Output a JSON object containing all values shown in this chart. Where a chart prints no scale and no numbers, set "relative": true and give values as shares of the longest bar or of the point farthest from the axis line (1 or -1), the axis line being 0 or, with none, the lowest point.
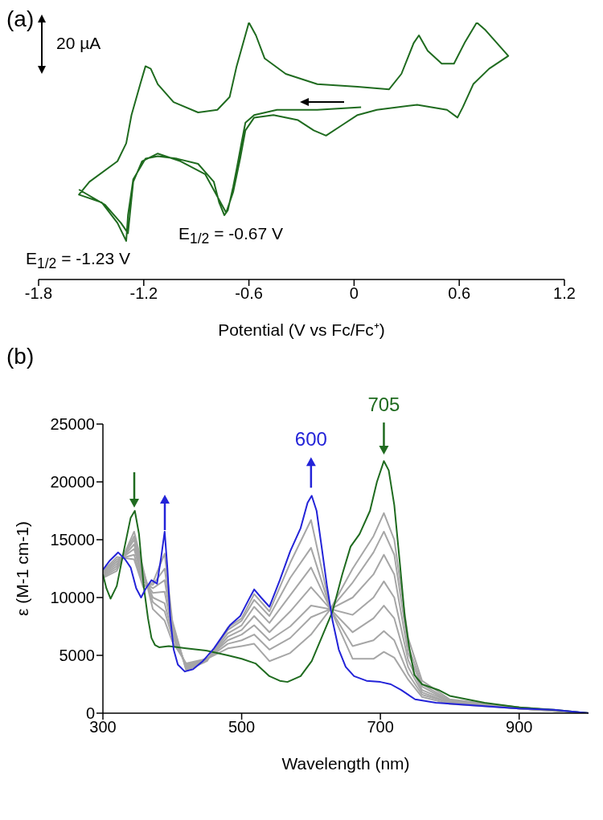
{
  "chart_data": [
    {
      "type": "line",
      "title": "(a)",
      "xlabel": "Potential (V vs Fc/Fc⁺)",
      "relative": true,
      "tick_labels": "x",
      "xlim": [
        -1.8,
        1.2
      ],
      "xticks": [
        -1.8,
        -1.2,
        -0.6,
        0,
        0.6,
        1.2
      ],
      "annotations": [
        "20 µA",
        "E$_{1/2}$ = -0.67 V",
        "E$_{1/2}$ = -1.23 V"
      ],
      "series": [
        {
          "color": "#1f6b1f",
          "x": [
            0.04,
            -0.21,
            -0.44,
            -0.57,
            -0.62,
            -0.64,
            -0.67,
            -0.69,
            -0.72,
            -0.74,
            -0.77,
            -0.8,
            -0.89,
            -1.01,
            -1.12,
            -1.19,
            -1.26,
            -1.29,
            -1.3,
            -1.35,
            -1.44,
            -1.57,
            -1.51,
            -1.35,
            -1.3,
            -1.27,
            -1.22,
            -1.19,
            -1.16,
            -1.12,
            -1.03,
            -0.89,
            -0.78,
            -0.71,
            -0.67,
            -0.6,
            -0.56,
            -0.51,
            -0.39,
            -0.21,
            0.02,
            0.2,
            0.27,
            0.34,
            0.37,
            0.42,
            0.5,
            0.57,
            0.63,
            0.7,
            0.75,
            0.88,
            0.77,
            0.68,
            0.62,
            0.59,
            0.53,
            0.36,
            0.13,
            0.02,
            -0.07,
            -0.16,
            -0.23,
            -0.32,
            -0.46,
            -0.57,
            -0.62,
            -0.65,
            -0.69,
            -0.73,
            -0.77,
            -0.85,
            -0.99,
            -1.12,
            -1.21,
            -1.26,
            -1.29,
            -1.33,
            -1.42,
            -1.57
          ],
          "values": [
            0.67,
            0.66,
            0.66,
            0.64,
            0.61,
            0.54,
            0.43,
            0.36,
            0.27,
            0.25,
            0.3,
            0.38,
            0.45,
            0.47,
            0.48,
            0.47,
            0.39,
            0.25,
            0.15,
            0.22,
            0.3,
            0.33,
            0.38,
            0.46,
            0.53,
            0.64,
            0.76,
            0.83,
            0.82,
            0.76,
            0.69,
            0.65,
            0.66,
            0.71,
            0.83,
            1,
            0.95,
            0.86,
            0.8,
            0.76,
            0.75,
            0.74,
            0.8,
            0.92,
            0.95,
            0.89,
            0.84,
            0.84,
            0.92,
            1,
            0.97,
            0.87,
            0.82,
            0.76,
            0.67,
            0.63,
            0.66,
            0.68,
            0.66,
            0.64,
            0.6,
            0.56,
            0.58,
            0.62,
            0.64,
            0.63,
            0.58,
            0.47,
            0.34,
            0.26,
            0.31,
            0.41,
            0.46,
            0.49,
            0.46,
            0.38,
            0.18,
            0.22,
            0.29,
            0.35
          ]
        }
      ]
    },
    {
      "type": "line",
      "title": "(b)",
      "xlabel": "Wavelength (nm)",
      "ylabel": "ε (M-1 cm-1)",
      "xlim": [
        300,
        1000
      ],
      "xticks": [
        300,
        500,
        700,
        900
      ],
      "ylim": [
        0,
        25000
      ],
      "yticks": [
        0,
        5000,
        10000,
        15000,
        20000,
        25000
      ],
      "annotations": [
        {
          "text": "600",
          "x": 600,
          "y": 18800
        },
        {
          "text": "705",
          "x": 705,
          "y": 21800
        }
      ],
      "series": [
        {
          "color": "#a6a6a6",
          "x": [
            300,
            320,
            345,
            358,
            372,
            389,
            400,
            420,
            450,
            480,
            500,
            518,
            540,
            570,
            600,
            628,
            660,
            690,
            705,
            720,
            740,
            760,
            800,
            900,
            1000
          ],
          "values": [
            11700,
            12300,
            15700,
            12500,
            9000,
            8000,
            6200,
            4300,
            4700,
            5600,
            5800,
            6000,
            4500,
            5200,
            6800,
            9000,
            12500,
            15300,
            17300,
            15000,
            6500,
            2800,
            1200,
            500,
            0
          ]
        },
        {
          "color": "#a6a6a6",
          "x": [
            300,
            320,
            345,
            358,
            372,
            389,
            400,
            420,
            450,
            480,
            500,
            518,
            540,
            570,
            600,
            628,
            660,
            690,
            705,
            720,
            740,
            760,
            800,
            900,
            1000
          ],
          "values": [
            11800,
            12500,
            15300,
            12300,
            9600,
            8800,
            6600,
            4200,
            4700,
            6000,
            6300,
            6800,
            5500,
            6500,
            8300,
            9000,
            11300,
            13900,
            15700,
            13700,
            5800,
            2500,
            1100,
            500,
            0
          ]
        },
        {
          "color": "#a6a6a6",
          "x": [
            300,
            320,
            345,
            358,
            372,
            389,
            400,
            420,
            450,
            480,
            500,
            518,
            540,
            570,
            600,
            628,
            660,
            690,
            705,
            720,
            740,
            760,
            800,
            900,
            1000
          ],
          "values": [
            11900,
            12700,
            15000,
            12000,
            10000,
            9500,
            6900,
            4100,
            4700,
            6300,
            6800,
            7600,
            6300,
            7500,
            9300,
            9000,
            10000,
            12000,
            13700,
            12000,
            5200,
            2300,
            1000,
            500,
            0
          ]
        },
        {
          "color": "#a6a6a6",
          "x": [
            300,
            320,
            345,
            358,
            372,
            389,
            400,
            420,
            450,
            480,
            500,
            518,
            540,
            570,
            600,
            628,
            660,
            690,
            705,
            720,
            740,
            760,
            800,
            900,
            1000
          ],
          "values": [
            12000,
            12900,
            14600,
            11700,
            10400,
            10500,
            7200,
            4000,
            4600,
            6600,
            7200,
            8400,
            7000,
            8800,
            10900,
            9000,
            8500,
            10000,
            11400,
            10000,
            4600,
            2000,
            1000,
            400,
            0
          ]
        },
        {
          "color": "#a6a6a6",
          "x": [
            300,
            320,
            345,
            358,
            372,
            389,
            400,
            420,
            450,
            480,
            500,
            518,
            540,
            570,
            600,
            628,
            660,
            690,
            705,
            720,
            740,
            760,
            800,
            900,
            1000
          ],
          "values": [
            12100,
            13100,
            14200,
            11400,
            10800,
            11500,
            7500,
            3900,
            4600,
            6900,
            7600,
            9200,
            7800,
            10200,
            12600,
            9000,
            7000,
            8200,
            9300,
            8200,
            4000,
            1800,
            900,
            400,
            0
          ]
        },
        {
          "color": "#a6a6a6",
          "x": [
            300,
            320,
            345,
            358,
            372,
            389,
            400,
            420,
            450,
            480,
            500,
            518,
            540,
            570,
            600,
            628,
            660,
            690,
            705,
            720,
            740,
            760,
            800,
            900,
            1000
          ],
          "values": [
            12200,
            13300,
            13700,
            11100,
            11100,
            12500,
            7800,
            3800,
            4600,
            7200,
            8000,
            9800,
            8400,
            11700,
            14300,
            9000,
            5800,
            6300,
            7100,
            6300,
            3400,
            1600,
            900,
            400,
            0
          ]
        },
        {
          "color": "#a6a6a6",
          "x": [
            300,
            320,
            345,
            358,
            372,
            389,
            400,
            420,
            450,
            480,
            500,
            518,
            540,
            570,
            600,
            628,
            660,
            690,
            705,
            720,
            740,
            760,
            800,
            900,
            1000
          ],
          "values": [
            12300,
            13500,
            13300,
            10900,
            11300,
            13800,
            8000,
            3700,
            4500,
            7400,
            8200,
            10300,
            8800,
            13000,
            16700,
            9000,
            4700,
            4700,
            5300,
            4800,
            2900,
            1400,
            800,
            400,
            0
          ]
        },
        {
          "color": "#1f6b1f",
          "x": [
            300,
            305,
            311,
            320,
            330,
            340,
            346,
            352,
            359,
            365,
            370,
            375,
            381,
            395,
            420,
            450,
            480,
            500,
            520,
            540,
            555,
            566,
            585,
            601,
            615,
            631,
            645,
            657,
            670,
            685,
            695,
            705,
            712,
            720,
            728,
            735,
            742,
            749,
            760,
            784,
            800,
            850,
            900,
            950,
            1000
          ],
          "values": [
            12000,
            10800,
            9900,
            11000,
            14000,
            16900,
            17500,
            15500,
            10900,
            8200,
            6500,
            5900,
            5700,
            5800,
            5600,
            5400,
            5000,
            4700,
            4300,
            3200,
            2800,
            2700,
            3200,
            4500,
            6500,
            8800,
            12000,
            14400,
            15500,
            17500,
            20000,
            21800,
            21000,
            18000,
            13000,
            8400,
            5500,
            3300,
            2500,
            2000,
            1500,
            900,
            500,
            300,
            0
          ]
        },
        {
          "color": "#2323d8",
          "x": [
            300,
            310,
            322,
            332,
            340,
            348,
            355,
            362,
            370,
            378,
            384,
            389,
            393,
            397,
            402,
            408,
            418,
            430,
            444,
            460,
            483,
            498,
            510,
            518,
            528,
            540,
            555,
            570,
            585,
            595,
            601,
            608,
            615,
            623,
            631,
            640,
            650,
            662,
            680,
            700,
            715,
            730,
            750,
            780,
            850,
            900,
            950,
            1000
          ],
          "values": [
            12400,
            13200,
            13900,
            13300,
            12600,
            10800,
            10000,
            10800,
            11500,
            11200,
            13500,
            15700,
            12500,
            8300,
            5500,
            4200,
            3600,
            3800,
            4500,
            5600,
            7600,
            8400,
            9800,
            10700,
            10000,
            9200,
            11500,
            14000,
            16000,
            18200,
            18800,
            17500,
            14500,
            11000,
            8000,
            5500,
            4000,
            3200,
            2800,
            2700,
            2500,
            2000,
            1200,
            900,
            600,
            400,
            300,
            0
          ]
        }
      ]
    }
  ]
}
